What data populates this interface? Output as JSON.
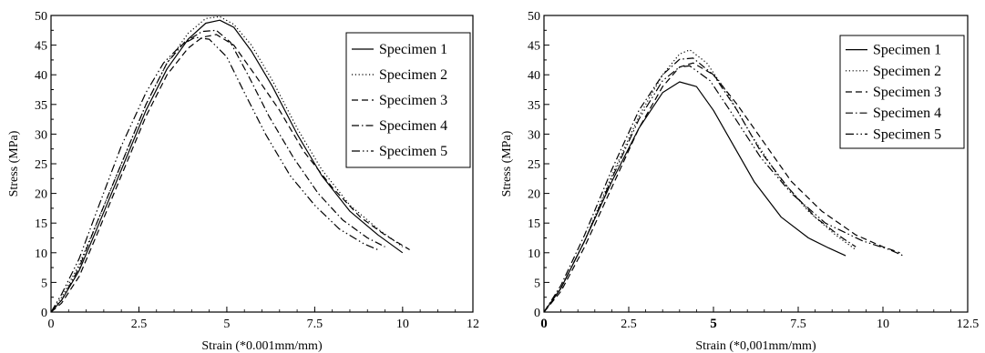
{
  "chart_data": [
    {
      "type": "line",
      "xlabel": "Strain (*0.001mm/mm)",
      "ylabel": "Stress (MPa)",
      "xlim": [
        0,
        12
      ],
      "ylim": [
        0,
        50
      ],
      "xticks": [
        0,
        2.5,
        5,
        7.5,
        10,
        12
      ],
      "xtick_labels": [
        "0",
        "2.5",
        "5",
        "7.5",
        "10",
        "12"
      ],
      "yticks": [
        0,
        5,
        10,
        15,
        20,
        25,
        30,
        35,
        40,
        45,
        50
      ],
      "ytick_labels": [
        "0",
        "5",
        "10",
        "15",
        "20",
        "25",
        "30",
        "35",
        "40",
        "45",
        "50"
      ],
      "grid": false,
      "legend_position": "top-right",
      "series": [
        {
          "name": "Specimen 1",
          "dash": "solid",
          "x": [
            0,
            0.3,
            0.8,
            1.3,
            2.0,
            2.7,
            3.3,
            3.9,
            4.4,
            4.8,
            5.2,
            5.7,
            6.3,
            7.0,
            7.7,
            8.5,
            9.3,
            10.0
          ],
          "y": [
            0,
            2,
            7,
            14,
            24,
            34,
            41,
            46,
            48.7,
            49.2,
            48,
            44,
            38,
            30,
            23,
            17,
            13,
            10
          ]
        },
        {
          "name": "Specimen 2",
          "dash": "dotted",
          "x": [
            0,
            0.3,
            0.8,
            1.3,
            2.0,
            2.7,
            3.3,
            3.9,
            4.4,
            4.8,
            5.2,
            5.7,
            6.3,
            7.0,
            7.7,
            8.5,
            9.3,
            10.0
          ],
          "y": [
            0,
            2.5,
            8,
            15,
            25,
            35,
            42,
            47,
            49.5,
            49.8,
            48.5,
            45,
            39,
            31,
            24,
            18,
            14,
            11
          ]
        },
        {
          "name": "Specimen 3",
          "dash": "dashed",
          "x": [
            0,
            0.3,
            0.8,
            1.3,
            2.0,
            2.7,
            3.3,
            3.9,
            4.3,
            4.7,
            5.2,
            5.8,
            6.5,
            7.2,
            8.0,
            8.8,
            9.5,
            10.2
          ],
          "y": [
            0,
            1.5,
            6,
            13,
            23,
            33,
            40,
            44.5,
            46.3,
            46.8,
            45,
            40,
            34,
            27,
            21,
            16,
            13,
            10.5
          ]
        },
        {
          "name": "Specimen 4",
          "dash": "dashdot",
          "x": [
            0,
            0.3,
            0.8,
            1.3,
            2.0,
            2.7,
            3.3,
            3.8,
            4.3,
            4.7,
            5.1,
            5.6,
            6.2,
            6.9,
            7.6,
            8.3,
            9.0,
            9.5
          ],
          "y": [
            0,
            2,
            7.5,
            15,
            25,
            35,
            42,
            45.5,
            47.3,
            47.5,
            45.5,
            40,
            33,
            26,
            20,
            15.5,
            12.5,
            11
          ]
        },
        {
          "name": "Specimen 5",
          "dash": "dashdotdot",
          "x": [
            0,
            0.3,
            0.8,
            1.3,
            2.0,
            2.7,
            3.2,
            3.7,
            4.1,
            4.5,
            5.0,
            5.5,
            6.1,
            6.8,
            7.5,
            8.2,
            8.9,
            9.3
          ],
          "y": [
            0,
            3,
            9,
            17,
            28,
            37,
            42,
            45,
            46.3,
            46,
            43,
            37,
            30,
            23,
            18,
            14,
            11.5,
            10.5
          ]
        }
      ]
    },
    {
      "type": "line",
      "xlabel": "Strain (*0,001mm/mm)",
      "ylabel": "Stress (MPa)",
      "xlim": [
        0,
        12.5
      ],
      "ylim": [
        0,
        50
      ],
      "xticks": [
        0,
        2.5,
        5,
        7.5,
        10,
        12.5
      ],
      "xtick_labels": [
        "0",
        "2.5",
        "5",
        "7.5",
        "10",
        "12.5"
      ],
      "bold_xticks": [
        "0",
        "5"
      ],
      "yticks": [
        0,
        5,
        10,
        15,
        20,
        25,
        30,
        35,
        40,
        45,
        50
      ],
      "ytick_labels": [
        "0",
        "5",
        "10",
        "15",
        "20",
        "25",
        "30",
        "35",
        "40",
        "45",
        "50"
      ],
      "grid": false,
      "legend_position": "top-right",
      "series": [
        {
          "name": "Specimen 1",
          "dash": "solid",
          "x": [
            0,
            0.5,
            1.2,
            2.0,
            2.8,
            3.5,
            4.0,
            4.5,
            5.0,
            5.5,
            6.2,
            7.0,
            7.8,
            8.4,
            8.9
          ],
          "y": [
            0,
            4,
            12,
            22,
            31,
            37,
            38.8,
            38,
            34,
            29,
            22,
            16,
            12.5,
            10.8,
            9.5
          ]
        },
        {
          "name": "Specimen 2",
          "dash": "dotted",
          "x": [
            0,
            0.5,
            1.2,
            2.0,
            2.8,
            3.5,
            4.0,
            4.3,
            4.8,
            5.4,
            6.1,
            6.9,
            7.8,
            8.6,
            9.2
          ],
          "y": [
            0,
            4,
            12,
            23,
            33,
            40,
            43.5,
            44.2,
            42,
            37,
            30,
            23,
            17,
            13,
            10.5
          ]
        },
        {
          "name": "Specimen 3",
          "dash": "dashed",
          "x": [
            0,
            0.5,
            1.2,
            2.0,
            2.8,
            3.5,
            4.0,
            4.4,
            5.0,
            5.7,
            6.5,
            7.3,
            8.2,
            9.2,
            10.0,
            10.5
          ],
          "y": [
            0,
            3.5,
            11,
            21,
            31,
            38,
            41.3,
            42,
            40,
            35,
            28.5,
            22,
            17,
            13,
            11,
            10
          ]
        },
        {
          "name": "Specimen 4",
          "dash": "dashdot",
          "x": [
            0,
            0.5,
            1.2,
            2.0,
            2.8,
            3.5,
            4.0,
            4.4,
            5.0,
            5.7,
            6.4,
            7.2,
            8.0,
            8.8,
            9.2
          ],
          "y": [
            0,
            4.5,
            13,
            24,
            34,
            40,
            42.6,
            42.8,
            40,
            34,
            27,
            21,
            16,
            12.5,
            11
          ]
        },
        {
          "name": "Specimen 5",
          "dash": "dashdotdot",
          "x": [
            0,
            0.5,
            1.2,
            2.0,
            2.8,
            3.5,
            4.0,
            4.3,
            4.9,
            5.6,
            6.4,
            7.3,
            8.3,
            9.4,
            10.2,
            10.6
          ],
          "y": [
            0,
            4,
            12,
            22.5,
            32.5,
            39,
            41.3,
            41.5,
            39,
            33,
            26,
            20,
            15,
            12,
            10.5,
            9.5
          ]
        }
      ]
    }
  ]
}
